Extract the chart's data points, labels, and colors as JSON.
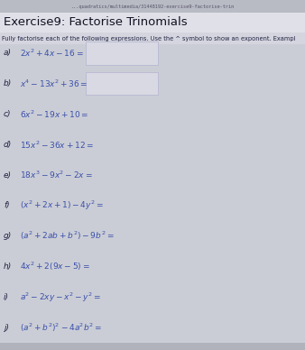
{
  "title": "Exercise9: Factorise Trinomials",
  "subtitle": "Fully factorise each of the following expressions. Use the ^ symbol to show an exponent. Exampl",
  "bg_color": "#c8cad4",
  "content_bg": "#cbcdd6",
  "title_bg": "#e0e1e8",
  "url_bar_color": "#b8bac4",
  "url_text": "...quadratics/multimedia/31448192-exercise9-factorise-trin",
  "questions": [
    {
      "label": "a)",
      "expr": "$2x^2 + 4x - 16 =$",
      "has_box": true
    },
    {
      "label": "b)",
      "expr": "$x^4 - 13x^2 + 36 =$",
      "has_box": true
    },
    {
      "label": "c)",
      "expr": "$6x^2 - 19x + 10 =$",
      "has_box": false
    },
    {
      "label": "d)",
      "expr": "$15x^2 - 36x + 12 =$",
      "has_box": false
    },
    {
      "label": "e)",
      "expr": "$18x^3 - 9x^2 - 2x =$",
      "has_box": false
    },
    {
      "label": "f)",
      "expr": "$(x^2 + 2x + 1) - 4y^2 =$",
      "has_box": false
    },
    {
      "label": "g)",
      "expr": "$(a^2 + 2ab + b^2) - 9b^2 =$",
      "has_box": false
    },
    {
      "label": "h)",
      "expr": "$4x^2 + 2(9x - 5) =$",
      "has_box": false
    },
    {
      "label": "i)",
      "expr": "$a^2 - 2xy - x^2 - y^2 =$",
      "has_box": false
    },
    {
      "label": "j)",
      "expr": "$(a^2 + b^2)^2 - 4a^2b^2 =$",
      "has_box": false
    }
  ],
  "answer_box_color": "#d8d9e2",
  "label_color": "#222244",
  "expr_color": "#3a50aa",
  "title_color": "#111122",
  "subtitle_color": "#222244",
  "url_text_color": "#555566",
  "title_fontsize": 9.5,
  "subtitle_fontsize": 4.8,
  "question_fontsize": 6.5,
  "label_fontsize": 6.5,
  "url_fontsize": 3.8
}
